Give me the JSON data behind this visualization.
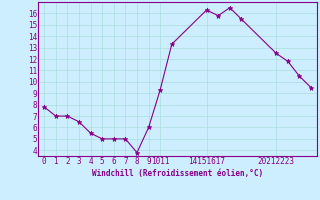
{
  "x": [
    0,
    1,
    2,
    3,
    4,
    5,
    6,
    7,
    8,
    9,
    10,
    11,
    14,
    15,
    16,
    17,
    20,
    21,
    22,
    23
  ],
  "y": [
    7.8,
    7.0,
    7.0,
    6.5,
    5.5,
    5.0,
    5.0,
    5.0,
    3.8,
    6.0,
    9.3,
    13.3,
    16.3,
    15.8,
    16.5,
    15.5,
    12.5,
    11.8,
    10.5,
    9.5
  ],
  "line_color": "#880088",
  "marker": "*",
  "marker_size": 3.5,
  "bg_color": "#cceeff",
  "grid_color": "#aadddd",
  "xlabel": "Windchill (Refroidissement éolien,°C)",
  "ylim": [
    3.5,
    17
  ],
  "yticks": [
    4,
    5,
    6,
    7,
    8,
    9,
    10,
    11,
    12,
    13,
    14,
    15,
    16
  ],
  "xlim": [
    -0.5,
    23.5
  ],
  "xtick_positions": [
    0,
    1,
    2,
    3,
    4,
    5,
    6,
    7,
    8,
    9,
    10,
    14,
    20
  ],
  "xtick_labels": [
    "0",
    "1",
    "2",
    "3",
    "4",
    "5",
    "6",
    "7",
    "8",
    "9",
    "1011",
    "14151617",
    "20212223"
  ]
}
